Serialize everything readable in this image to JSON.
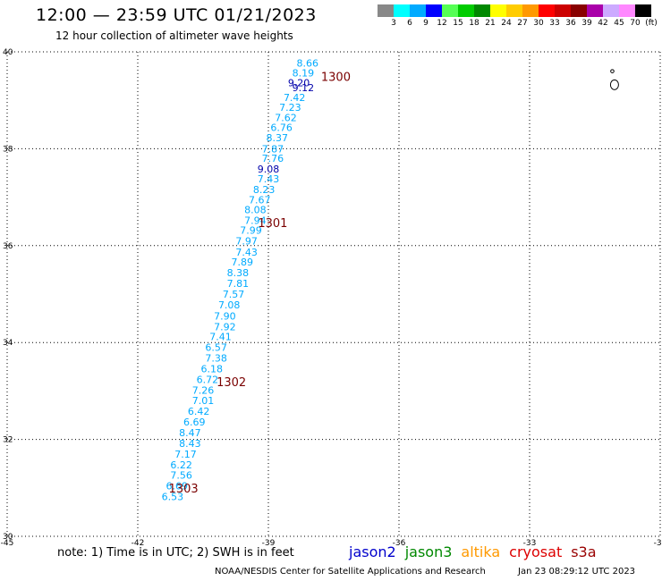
{
  "header": {
    "title": "12:00 — 23:59 UTC 01/21/2023",
    "subtitle": "12 hour collection of altimeter wave heights"
  },
  "legend": {
    "colors": [
      "#888888",
      "#00ffff",
      "#00aaff",
      "#0000ff",
      "#55ff55",
      "#00cc00",
      "#008800",
      "#ffff00",
      "#ffcc00",
      "#ff9900",
      "#ff0000",
      "#cc0000",
      "#880000",
      "#aa00aa",
      "#ccaaff",
      "#ff88ff",
      "#000000"
    ],
    "labels": [
      "3",
      "6",
      "9",
      "12",
      "15",
      "18",
      "21",
      "24",
      "27",
      "30",
      "33",
      "36",
      "39",
      "42",
      "45",
      "70",
      "(ft)"
    ]
  },
  "map": {
    "lon_ticks": [
      "-45",
      "-42",
      "-39",
      "-36",
      "-33",
      "-30"
    ],
    "lat_ticks": [
      "40",
      "38",
      "36",
      "34",
      "32",
      "30"
    ],
    "xlim": [
      -45,
      -30
    ],
    "ylim": [
      30,
      40
    ],
    "grid": true
  },
  "chart_data": {
    "type": "scatter",
    "xlim": [
      -45,
      -30
    ],
    "ylim": [
      30,
      40
    ],
    "grid": true,
    "observations": [
      {
        "lon": -38.1,
        "lat": 39.77,
        "v": "8.66",
        "c": "#00aaff"
      },
      {
        "lon": -38.2,
        "lat": 39.57,
        "v": "8.19",
        "c": "#00aaff"
      },
      {
        "lon": -38.3,
        "lat": 39.36,
        "v": "9.20",
        "c": "#0000aa"
      },
      {
        "lon": -38.2,
        "lat": 39.26,
        "v": "9.12",
        "c": "#0000aa"
      },
      {
        "lon": -38.4,
        "lat": 39.06,
        "v": "7.42",
        "c": "#00aaff"
      },
      {
        "lon": -38.5,
        "lat": 38.86,
        "v": "7.23",
        "c": "#00aaff"
      },
      {
        "lon": -38.6,
        "lat": 38.64,
        "v": "7.62",
        "c": "#00aaff"
      },
      {
        "lon": -38.7,
        "lat": 38.44,
        "v": "6.76",
        "c": "#00aaff"
      },
      {
        "lon": -38.8,
        "lat": 38.23,
        "v": "8.37",
        "c": "#00aaff"
      },
      {
        "lon": -38.9,
        "lat": 38.0,
        "v": "7.87",
        "c": "#00aaff"
      },
      {
        "lon": -38.9,
        "lat": 37.8,
        "v": "7.76",
        "c": "#00aaff"
      },
      {
        "lon": -39.0,
        "lat": 37.58,
        "v": "9.08",
        "c": "#0000aa"
      },
      {
        "lon": -39.0,
        "lat": 37.38,
        "v": "7.43",
        "c": "#00aaff"
      },
      {
        "lon": -39.1,
        "lat": 37.16,
        "v": "8.23",
        "c": "#00aaff"
      },
      {
        "lon": -39.2,
        "lat": 36.95,
        "v": "7.67",
        "c": "#00aaff"
      },
      {
        "lon": -39.3,
        "lat": 36.74,
        "v": "8.08",
        "c": "#00aaff"
      },
      {
        "lon": -39.3,
        "lat": 36.52,
        "v": "7.94",
        "c": "#00aaff"
      },
      {
        "lon": -39.4,
        "lat": 36.32,
        "v": "7.99",
        "c": "#00aaff"
      },
      {
        "lon": -39.5,
        "lat": 36.1,
        "v": "7.97",
        "c": "#00aaff"
      },
      {
        "lon": -39.5,
        "lat": 35.87,
        "v": "7.43",
        "c": "#00aaff"
      },
      {
        "lon": -39.6,
        "lat": 35.66,
        "v": "7.89",
        "c": "#00aaff"
      },
      {
        "lon": -39.7,
        "lat": 35.44,
        "v": "8.38",
        "c": "#00aaff"
      },
      {
        "lon": -39.7,
        "lat": 35.22,
        "v": "7.81",
        "c": "#00aaff"
      },
      {
        "lon": -39.8,
        "lat": 35.0,
        "v": "7.57",
        "c": "#00aaff"
      },
      {
        "lon": -39.9,
        "lat": 34.78,
        "v": "7.08",
        "c": "#00aaff"
      },
      {
        "lon": -40.0,
        "lat": 34.55,
        "v": "7.90",
        "c": "#00aaff"
      },
      {
        "lon": -40.0,
        "lat": 34.33,
        "v": "7.92",
        "c": "#00aaff"
      },
      {
        "lon": -40.1,
        "lat": 34.12,
        "v": "7.41",
        "c": "#00aaff"
      },
      {
        "lon": -40.2,
        "lat": 33.9,
        "v": "6.57",
        "c": "#00aaff"
      },
      {
        "lon": -40.2,
        "lat": 33.68,
        "v": "7.38",
        "c": "#00aaff"
      },
      {
        "lon": -40.3,
        "lat": 33.46,
        "v": "6.18",
        "c": "#00aaff"
      },
      {
        "lon": -40.4,
        "lat": 33.24,
        "v": "6.72",
        "c": "#00aaff"
      },
      {
        "lon": -40.5,
        "lat": 33.02,
        "v": "7.26",
        "c": "#00aaff"
      },
      {
        "lon": -40.5,
        "lat": 32.8,
        "v": "7.01",
        "c": "#00aaff"
      },
      {
        "lon": -40.6,
        "lat": 32.58,
        "v": "6.42",
        "c": "#00aaff"
      },
      {
        "lon": -40.7,
        "lat": 32.36,
        "v": "6.69",
        "c": "#00aaff"
      },
      {
        "lon": -40.8,
        "lat": 32.14,
        "v": "8.47",
        "c": "#00aaff"
      },
      {
        "lon": -40.8,
        "lat": 31.92,
        "v": "8.43",
        "c": "#00aaff"
      },
      {
        "lon": -40.9,
        "lat": 31.7,
        "v": "7.17",
        "c": "#00aaff"
      },
      {
        "lon": -41.0,
        "lat": 31.48,
        "v": "6.22",
        "c": "#00aaff"
      },
      {
        "lon": -41.0,
        "lat": 31.26,
        "v": "7.56",
        "c": "#00aaff"
      },
      {
        "lon": -41.1,
        "lat": 31.04,
        "v": "6.69",
        "c": "#00aaff"
      },
      {
        "lon": -41.2,
        "lat": 30.82,
        "v": "6.53",
        "c": "#00aaff"
      }
    ],
    "pass_times": [
      {
        "lon": -37.45,
        "lat": 39.49,
        "t": "1300"
      },
      {
        "lon": -38.9,
        "lat": 36.48,
        "t": "1301"
      },
      {
        "lon": -39.85,
        "lat": 33.19,
        "t": "1302"
      },
      {
        "lon": -40.95,
        "lat": 31.0,
        "t": "1303"
      }
    ],
    "islands": [
      {
        "lon": -31.1,
        "lat": 39.6
      },
      {
        "lon": -31.05,
        "lat": 39.32
      }
    ]
  },
  "footer": {
    "note": "note:  1) Time is in UTC;  2) SWH is in feet",
    "satellites": [
      {
        "name": "jason2",
        "color": "#0000cc"
      },
      {
        "name": "jason3",
        "color": "#008800"
      },
      {
        "name": "altika",
        "color": "#ff9900"
      },
      {
        "name": "cryosat",
        "color": "#dd0000"
      },
      {
        "name": "s3a",
        "color": "#990000"
      }
    ],
    "credit": "NOAA/NESDIS Center for Satellite Applications and Research",
    "timestamp": "Jan 23 08:29:12 UTC 2023"
  }
}
